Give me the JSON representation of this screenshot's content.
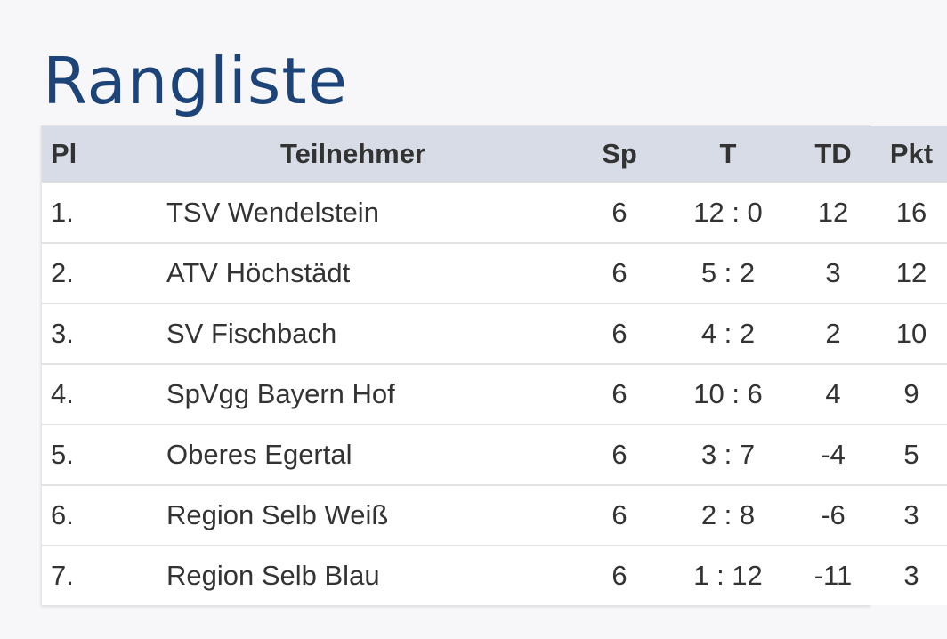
{
  "title": "Rangliste",
  "table": {
    "headers": {
      "pl": "Pl",
      "name": "Teilnehmer",
      "sp": "Sp",
      "t": "T",
      "td": "TD",
      "pkt": "Pkt"
    },
    "rows": [
      {
        "pl": "1.",
        "name": "TSV Wendelstein",
        "sp": "6",
        "t": "12 : 0",
        "td": "12",
        "pkt": "16"
      },
      {
        "pl": "2.",
        "name": "ATV Höchstädt",
        "sp": "6",
        "t": "5 : 2",
        "td": "3",
        "pkt": "12"
      },
      {
        "pl": "3.",
        "name": "SV Fischbach",
        "sp": "6",
        "t": "4 : 2",
        "td": "2",
        "pkt": "10"
      },
      {
        "pl": "4.",
        "name": "SpVgg Bayern Hof",
        "sp": "6",
        "t": "10 : 6",
        "td": "4",
        "pkt": "9"
      },
      {
        "pl": "5.",
        "name": "Oberes Egertal",
        "sp": "6",
        "t": "3 : 7",
        "td": "-4",
        "pkt": "5"
      },
      {
        "pl": "6.",
        "name": "Region Selb Weiß",
        "sp": "6",
        "t": "2 : 8",
        "td": "-6",
        "pkt": "3"
      },
      {
        "pl": "7.",
        "name": "Region Selb Blau",
        "sp": "6",
        "t": "1 : 12",
        "td": "-11",
        "pkt": "3"
      }
    ]
  },
  "colors": {
    "title": "#1d4479",
    "header_bg": "#d7dce6",
    "row_bg": "#ffffff",
    "page_bg": "#f7f7f9"
  }
}
